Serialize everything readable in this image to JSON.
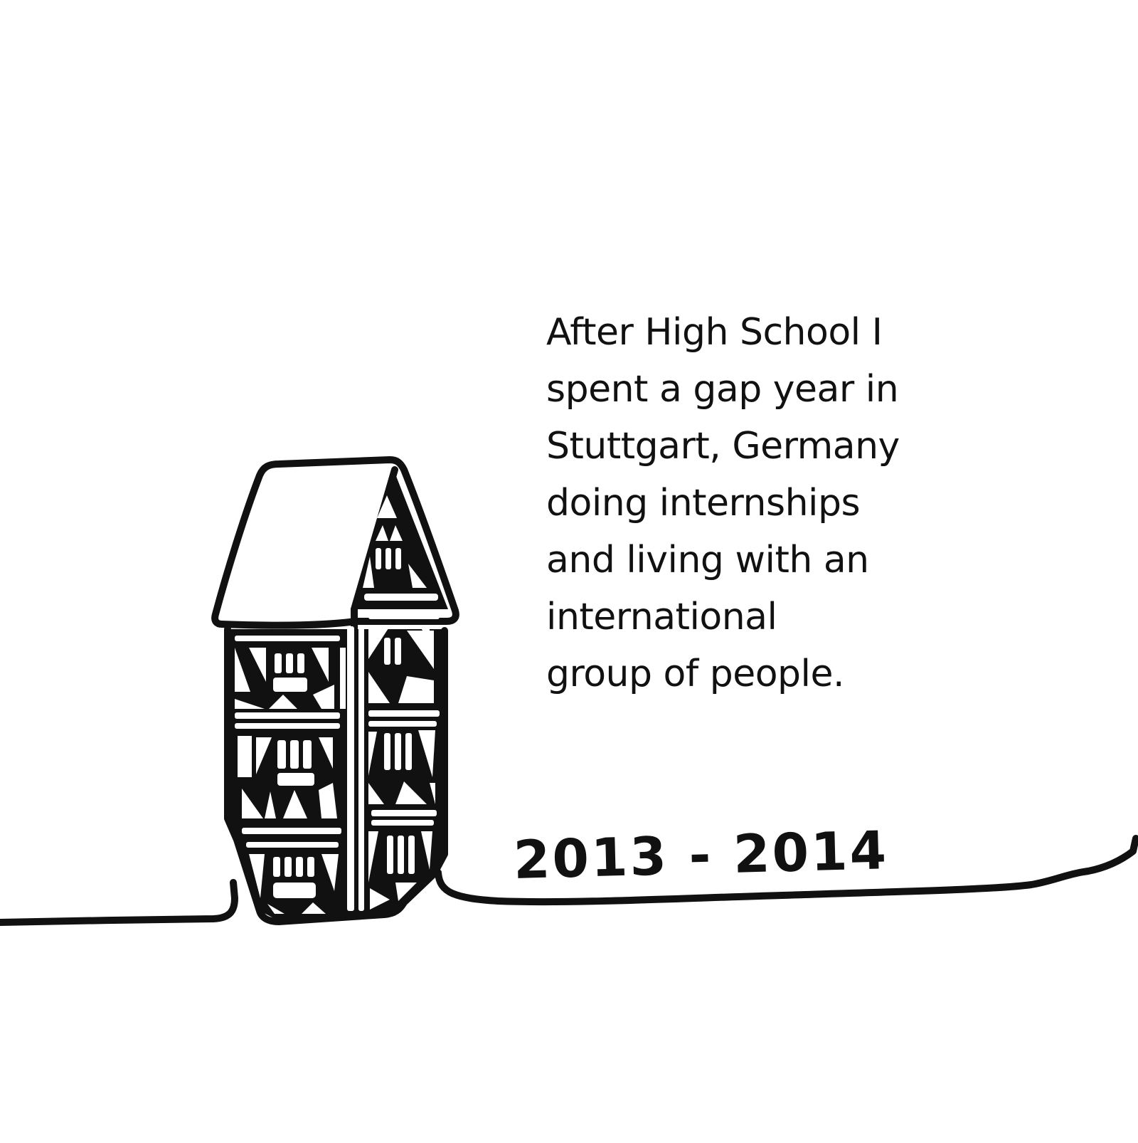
{
  "caption": {
    "lines": [
      "After High School I",
      "spent a gap year in",
      "Stuttgart, Germany",
      "doing internships",
      "and living with an",
      "international",
      "group of people."
    ]
  },
  "year_label": "2013 - 2014",
  "colors": {
    "ink": "#111111",
    "background": "#ffffff"
  },
  "illustration": {
    "icon": "half-timbered-house-icon",
    "ground": "horizon-line"
  }
}
